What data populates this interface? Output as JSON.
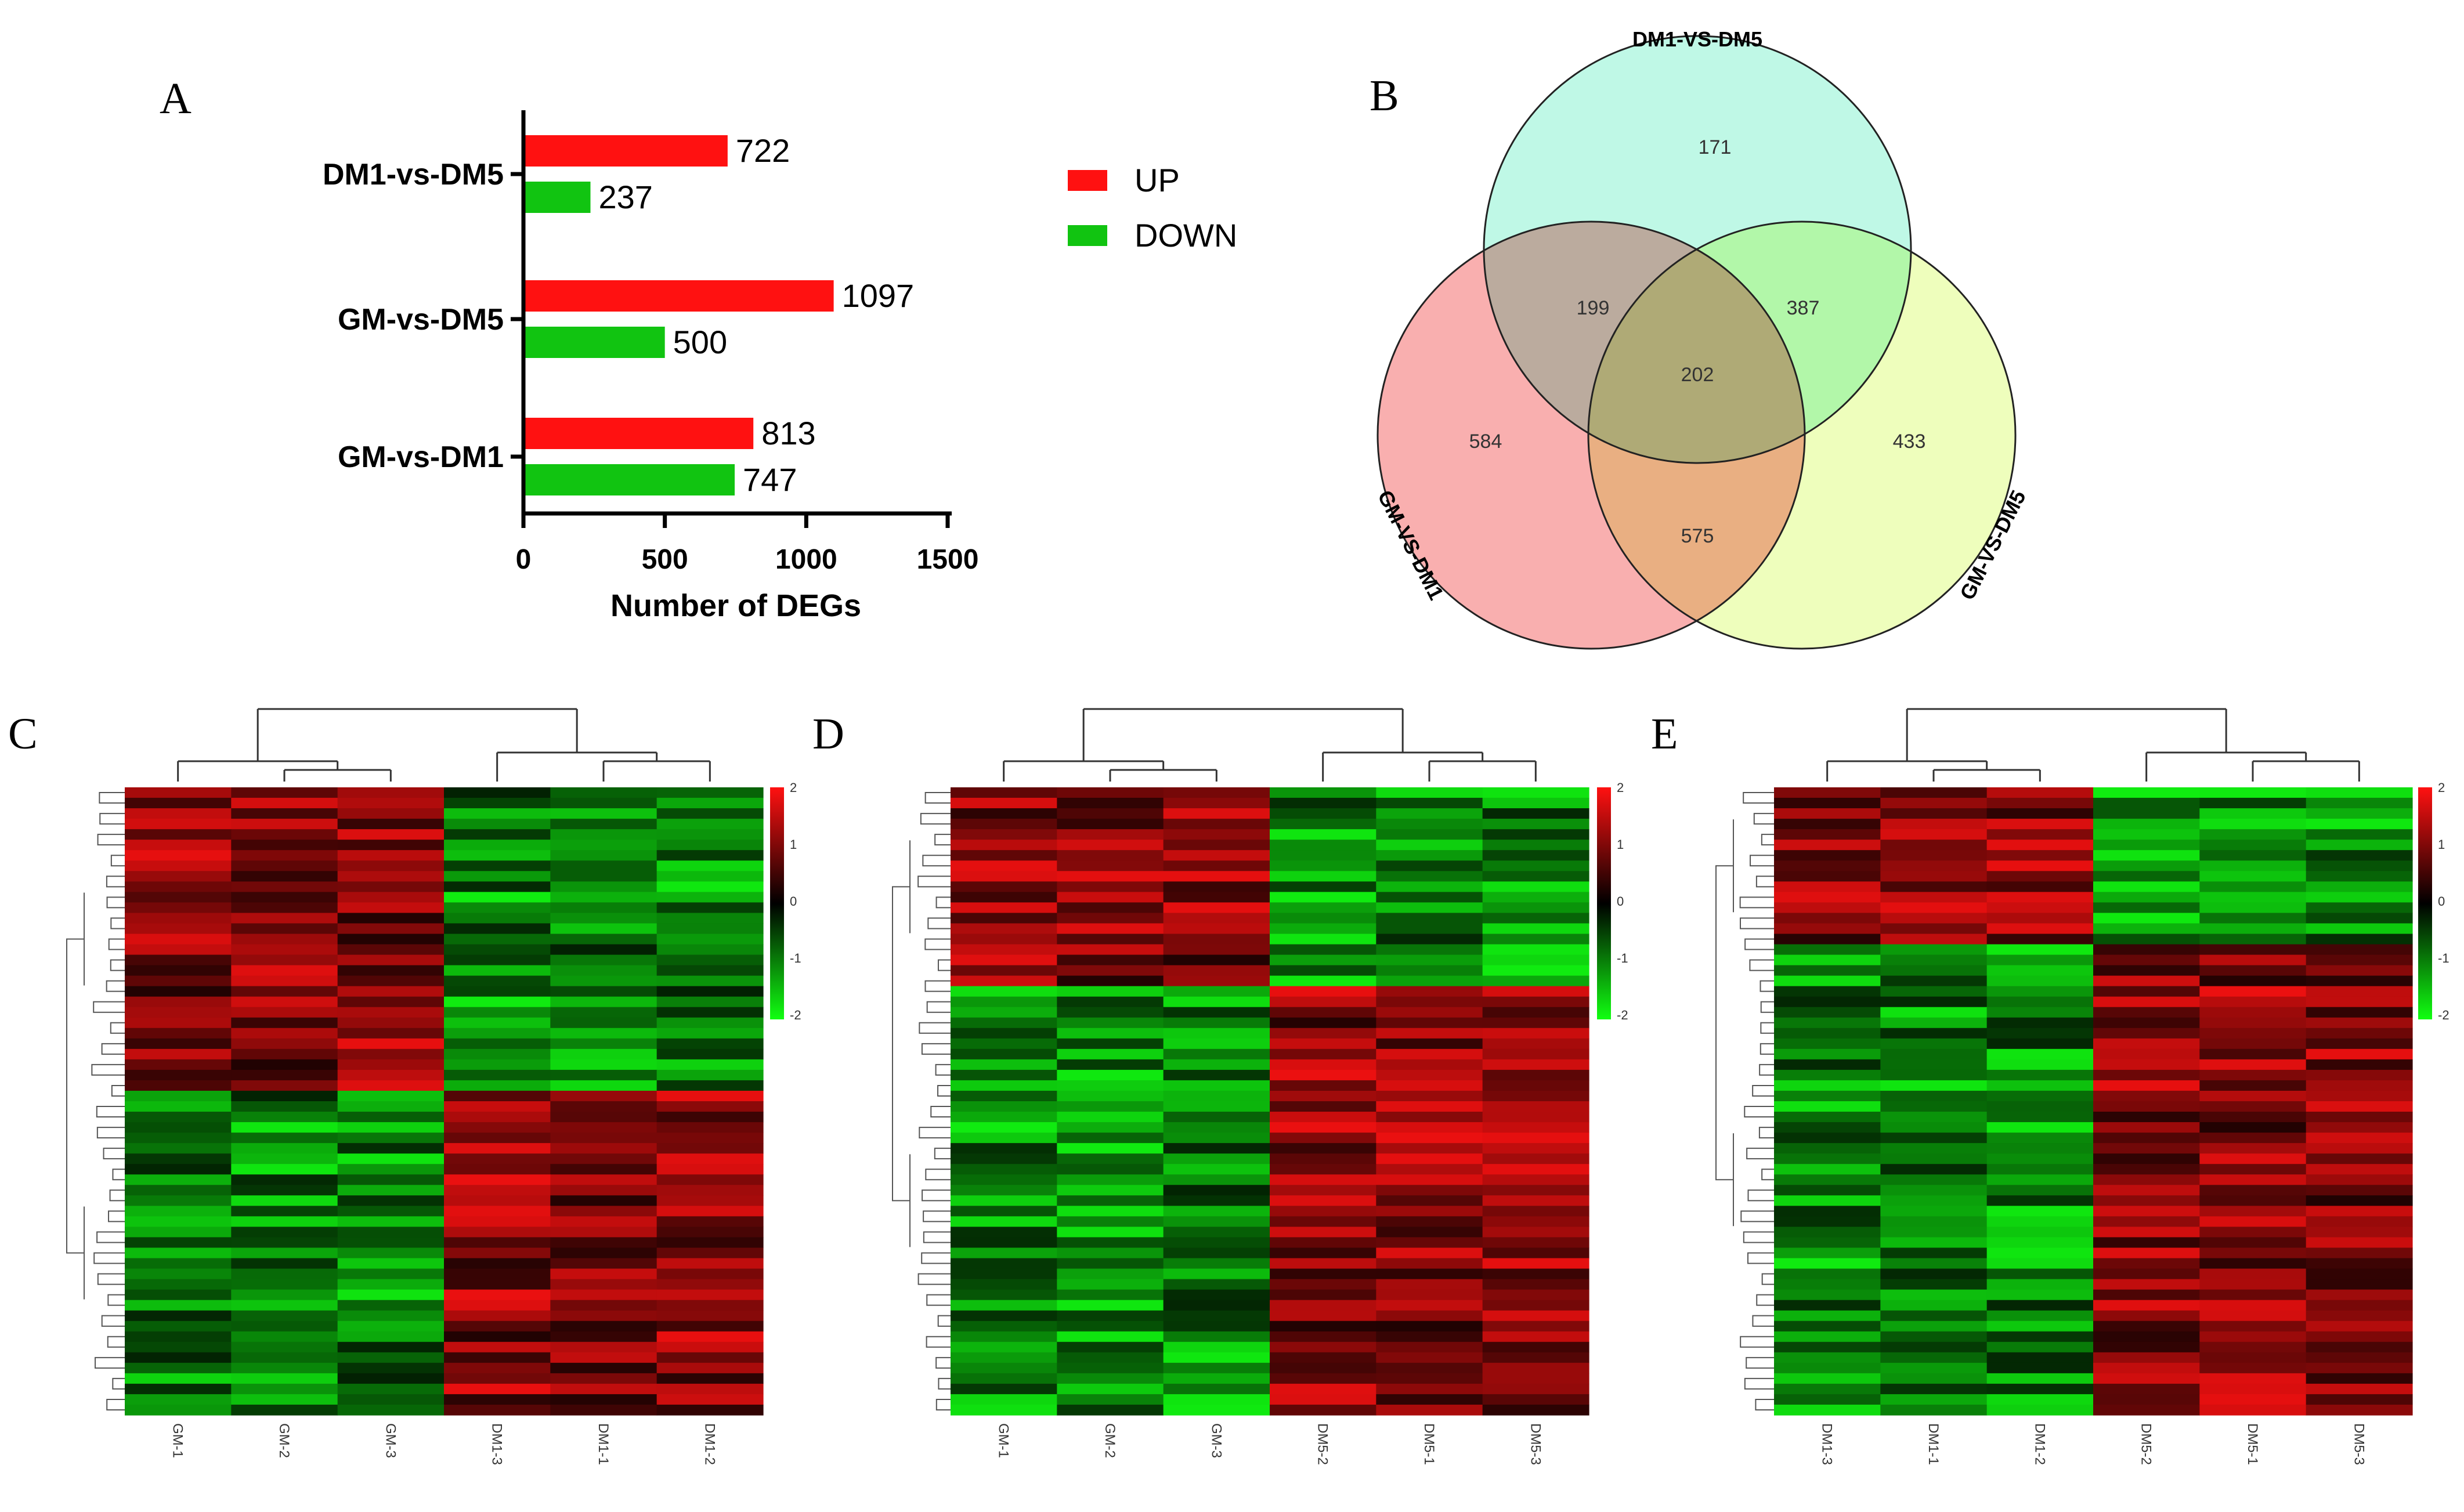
{
  "colors": {
    "up": "#ff1111",
    "down": "#11c411",
    "heat_high": "#ff1111",
    "heat_mid": "#000000",
    "heat_low": "#11ff11",
    "venn_dm1_dm5": "#aaf5dd",
    "venn_gm_dm1": "#f8a6a6",
    "venn_gm_dm5": "#e8fda6"
  },
  "panels": {
    "a": "A",
    "b": "B",
    "c": "C",
    "d": "D",
    "e": "E"
  },
  "chart_data": [
    {
      "type": "bar",
      "orientation": "horizontal",
      "categories": [
        "DM1-vs-DM5",
        "GM-vs-DM5",
        "GM-vs-DM1"
      ],
      "series": [
        {
          "name": "UP",
          "values": [
            722,
            1097,
            813
          ]
        },
        {
          "name": "DOWN",
          "values": [
            237,
            500,
            747
          ]
        }
      ],
      "xlabel": "Number of DEGs",
      "xlim": [
        0,
        1500
      ],
      "xticks": [
        "0",
        "500",
        "1000",
        "1500"
      ],
      "legend_position": "right"
    },
    {
      "type": "venn",
      "sets": [
        "DM1-VS-DM5",
        "GM-VS-DM1",
        "GM-VS-DM5"
      ],
      "regions": {
        "dm1_dm5_only": "171",
        "gm_dm1_only": "584",
        "gm_dm5_only": "433",
        "dm1dm5_gmdm1": "199",
        "dm1dm5_gmdm5": "387",
        "gmdm1_gmdm5": "575",
        "all_three": "202"
      }
    },
    {
      "type": "heatmap",
      "columns": [
        "GM-1",
        "GM-2",
        "GM-3",
        "DM1-3",
        "DM1-1",
        "DM1-2"
      ],
      "scale": [
        "2",
        "1",
        "0",
        "-1",
        "-2"
      ],
      "rows": 60,
      "up_block_fraction": 0.48
    },
    {
      "type": "heatmap",
      "columns": [
        "GM-1",
        "GM-2",
        "GM-3",
        "DM5-2",
        "DM5-1",
        "DM5-3"
      ],
      "scale": [
        "2",
        "1",
        "0",
        "-1",
        "-2"
      ],
      "rows": 60,
      "up_block_fraction": 0.31
    },
    {
      "type": "heatmap",
      "columns": [
        "DM1-3",
        "DM1-1",
        "DM1-2",
        "DM5-2",
        "DM5-1",
        "DM5-3"
      ],
      "scale": [
        "2",
        "1",
        "0",
        "-1",
        "-2"
      ],
      "rows": 60,
      "up_block_fraction": 0.25
    }
  ]
}
